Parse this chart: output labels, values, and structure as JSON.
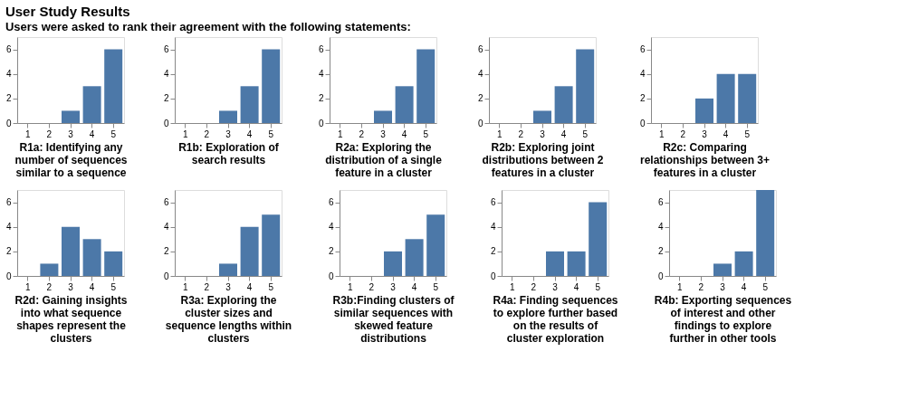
{
  "chart_data": [
    {
      "type": "bar",
      "title": "User Study Results",
      "subtitle": "Users were asked to rank their agreement with the following statements:",
      "xlabel": "R1a: Identifying any number of sequences similar to a sequence",
      "categories": [
        "1",
        "2",
        "3",
        "4",
        "5"
      ],
      "values": [
        0,
        0,
        1,
        3,
        6
      ],
      "color": "#4c78a8",
      "ylim": [
        0,
        7
      ],
      "yticks": [
        0,
        2,
        4,
        6
      ],
      "grid": false
    },
    {
      "type": "bar",
      "xlabel": "R1b: Exploration of search results",
      "categories": [
        "1",
        "2",
        "3",
        "4",
        "5"
      ],
      "values": [
        0,
        0,
        1,
        3,
        6
      ],
      "color": "#4c78a8",
      "ylim": [
        0,
        7
      ],
      "yticks": [
        0,
        2,
        4,
        6
      ],
      "grid": false
    },
    {
      "type": "bar",
      "xlabel": "R2a: Exploring the distribution of a single feature in a cluster",
      "categories": [
        "1",
        "2",
        "3",
        "4",
        "5"
      ],
      "values": [
        0,
        0,
        1,
        3,
        6
      ],
      "color": "#4c78a8",
      "ylim": [
        0,
        7
      ],
      "yticks": [
        0,
        2,
        4,
        6
      ],
      "grid": false
    },
    {
      "type": "bar",
      "xlabel": "R2b: Exploring joint distributions between 2 features in a cluster",
      "categories": [
        "1",
        "2",
        "3",
        "4",
        "5"
      ],
      "values": [
        0,
        0,
        1,
        3,
        6
      ],
      "color": "#4c78a8",
      "ylim": [
        0,
        7
      ],
      "yticks": [
        0,
        2,
        4,
        6
      ],
      "grid": false
    },
    {
      "type": "bar",
      "xlabel": "R2c: Comparing relationships between 3+ features in a cluster",
      "categories": [
        "1",
        "2",
        "3",
        "4",
        "5"
      ],
      "values": [
        0,
        0,
        2,
        4,
        4
      ],
      "color": "#4c78a8",
      "ylim": [
        0,
        7
      ],
      "yticks": [
        0,
        2,
        4,
        6
      ],
      "grid": false
    },
    {
      "type": "bar",
      "xlabel": "R2d: Gaining insights into what sequence shapes represent the clusters",
      "categories": [
        "1",
        "2",
        "3",
        "4",
        "5"
      ],
      "values": [
        0,
        1,
        4,
        3,
        2
      ],
      "color": "#4c78a8",
      "ylim": [
        0,
        7
      ],
      "yticks": [
        0,
        2,
        4,
        6
      ],
      "grid": false
    },
    {
      "type": "bar",
      "xlabel": "R3a: Exploring the cluster sizes and sequence lengths within clusters",
      "categories": [
        "1",
        "2",
        "3",
        "4",
        "5"
      ],
      "values": [
        0,
        0,
        1,
        4,
        5
      ],
      "color": "#4c78a8",
      "ylim": [
        0,
        7
      ],
      "yticks": [
        0,
        2,
        4,
        6
      ],
      "grid": false
    },
    {
      "type": "bar",
      "xlabel": "R3b:Finding clusters of similar sequences with skewed feature distributions",
      "categories": [
        "1",
        "2",
        "3",
        "4",
        "5"
      ],
      "values": [
        0,
        0,
        2,
        3,
        5
      ],
      "color": "#4c78a8",
      "ylim": [
        0,
        7
      ],
      "yticks": [
        0,
        2,
        4,
        6
      ],
      "grid": false
    },
    {
      "type": "bar",
      "xlabel": "R4a: Finding sequences to explore further based on the results of cluster exploration",
      "categories": [
        "1",
        "2",
        "3",
        "4",
        "5"
      ],
      "values": [
        0,
        0,
        2,
        2,
        6
      ],
      "color": "#4c78a8",
      "ylim": [
        0,
        7
      ],
      "yticks": [
        0,
        2,
        4,
        6
      ],
      "grid": false
    },
    {
      "type": "bar",
      "xlabel": "R4b: Exporting sequences of interest and other findings to explore further in other tools",
      "categories": [
        "1",
        "2",
        "3",
        "4",
        "5"
      ],
      "values": [
        0,
        0,
        1,
        2,
        7
      ],
      "color": "#4c78a8",
      "ylim": [
        0,
        7
      ],
      "yticks": [
        0,
        2,
        4,
        6
      ],
      "grid": false
    }
  ]
}
